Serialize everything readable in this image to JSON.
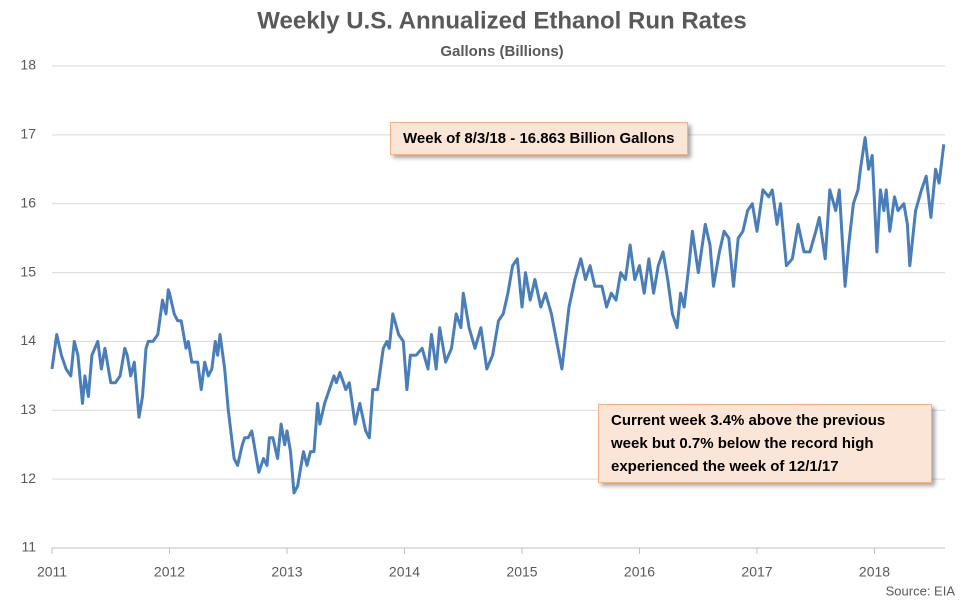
{
  "chart_data": {
    "type": "line",
    "title": "Weekly U.S. Annualized Ethanol Run Rates",
    "subtitle": "Gallons (Billions)",
    "source": "Source: EIA",
    "annotations": [
      "Week of 8/3/18 - 16.863 Billion Gallons",
      "Current week 3.4% above the previous week but 0.7% below the record high experienced the week of 12/1/17"
    ],
    "color": "#4a7ebb",
    "grid": true,
    "xlim": [
      2011,
      2018.6
    ],
    "xticks": [
      2011,
      2012,
      2013,
      2014,
      2015,
      2016,
      2017,
      2018
    ],
    "ylim": [
      11,
      18
    ],
    "yticks": [
      11,
      12,
      13,
      14,
      15,
      16,
      17,
      18
    ],
    "x": [
      2011,
      2011.04,
      2011.08,
      2011.12,
      2011.16,
      2011.19,
      2011.22,
      2011.26,
      2011.28,
      2011.31,
      2011.34,
      2011.39,
      2011.42,
      2011.45,
      2011.5,
      2011.54,
      2011.58,
      2011.62,
      2011.64,
      2011.67,
      2011.7,
      2011.74,
      2011.77,
      2011.8,
      2011.82,
      2011.86,
      2011.9,
      2011.94,
      2011.97,
      2011.99,
      2012.0,
      2012.04,
      2012.07,
      2012.1,
      2012.14,
      2012.16,
      2012.19,
      2012.24,
      2012.27,
      2012.3,
      2012.33,
      2012.36,
      2012.39,
      2012.41,
      2012.43,
      2012.47,
      2012.5,
      2012.55,
      2012.58,
      2012.62,
      2012.64,
      2012.67,
      2012.7,
      2012.76,
      2012.8,
      2012.83,
      2012.85,
      2012.88,
      2012.92,
      2012.95,
      2012.98,
      2013.0,
      2013.03,
      2013.06,
      2013.09,
      2013.12,
      2013.14,
      2013.17,
      2013.2,
      2013.23,
      2013.26,
      2013.28,
      2013.32,
      2013.36,
      2013.4,
      2013.42,
      2013.45,
      2013.5,
      2013.53,
      2013.58,
      2013.62,
      2013.67,
      2013.7,
      2013.73,
      2013.77,
      2013.82,
      2013.85,
      2013.87,
      2013.9,
      2013.95,
      2013.99,
      2014.02,
      2014.05,
      2014.1,
      2014.15,
      2014.2,
      2014.23,
      2014.27,
      2014.3,
      2014.35,
      2014.4,
      2014.44,
      2014.48,
      2014.5,
      2014.55,
      2014.6,
      2014.65,
      2014.7,
      2014.75,
      2014.8,
      2014.84,
      2014.88,
      2014.92,
      2014.96,
      2015.0,
      2015.03,
      2015.07,
      2015.11,
      2015.16,
      2015.2,
      2015.25,
      2015.34,
      2015.4,
      2015.45,
      2015.5,
      2015.54,
      2015.58,
      2015.62,
      2015.68,
      2015.72,
      2015.76,
      2015.8,
      2015.84,
      2015.88,
      2015.92,
      2015.96,
      2016.0,
      2016.04,
      2016.08,
      2016.12,
      2016.16,
      2016.2,
      2016.24,
      2016.28,
      2016.32,
      2016.35,
      2016.38,
      2016.42,
      2016.45,
      2016.5,
      2016.56,
      2016.6,
      2016.63,
      2016.68,
      2016.72,
      2016.76,
      2016.8,
      2016.84,
      2016.88,
      2016.92,
      2016.96,
      2017.0,
      2017.05,
      2017.1,
      2017.13,
      2017.17,
      2017.2,
      2017.25,
      2017.3,
      2017.35,
      2017.4,
      2017.45,
      2017.5,
      2017.53,
      2017.58,
      2017.62,
      2017.67,
      2017.7,
      2017.75,
      2017.78,
      2017.82,
      2017.86,
      2017.88,
      2017.92,
      2017.95,
      2017.98,
      2018.02,
      2018.05,
      2018.08,
      2018.1,
      2018.13,
      2018.17,
      2018.2,
      2018.25,
      2018.28,
      2018.3,
      2018.35,
      2018.4,
      2018.44,
      2018.48,
      2018.52,
      2018.55,
      2018.59
    ],
    "values": [
      13.6,
      14.1,
      13.8,
      13.6,
      13.5,
      14.0,
      13.8,
      13.1,
      13.5,
      13.2,
      13.8,
      14.0,
      13.6,
      13.9,
      13.4,
      13.4,
      13.5,
      13.9,
      13.8,
      13.5,
      13.7,
      12.9,
      13.2,
      13.9,
      14.0,
      14.0,
      14.1,
      14.6,
      14.4,
      14.75,
      14.7,
      14.4,
      14.3,
      14.3,
      13.9,
      14.0,
      13.7,
      13.7,
      13.3,
      13.7,
      13.5,
      13.6,
      14.0,
      13.8,
      14.1,
      13.6,
      13.0,
      12.3,
      12.2,
      12.5,
      12.6,
      12.6,
      12.7,
      12.1,
      12.3,
      12.2,
      12.6,
      12.6,
      12.3,
      12.8,
      12.5,
      12.7,
      12.4,
      11.8,
      11.9,
      12.2,
      12.4,
      12.2,
      12.4,
      12.4,
      13.1,
      12.8,
      13.1,
      13.3,
      13.5,
      13.4,
      13.55,
      13.3,
      13.4,
      12.8,
      13.1,
      12.7,
      12.6,
      13.3,
      13.3,
      13.9,
      14.0,
      13.9,
      14.4,
      14.1,
      14.0,
      13.3,
      13.8,
      13.8,
      13.9,
      13.6,
      14.1,
      13.6,
      14.2,
      13.7,
      13.9,
      14.4,
      14.2,
      14.7,
      14.2,
      13.9,
      14.2,
      13.6,
      13.8,
      14.3,
      14.4,
      14.7,
      15.1,
      15.2,
      14.5,
      15.0,
      14.6,
      14.9,
      14.5,
      14.7,
      14.4,
      13.6,
      14.5,
      14.9,
      15.2,
      14.9,
      15.1,
      14.8,
      14.8,
      14.5,
      14.7,
      14.6,
      15.0,
      14.9,
      15.4,
      14.9,
      15.1,
      14.7,
      15.2,
      14.7,
      15.1,
      15.3,
      14.9,
      14.4,
      14.2,
      14.7,
      14.5,
      15.1,
      15.6,
      15.0,
      15.7,
      15.4,
      14.8,
      15.3,
      15.6,
      15.5,
      14.8,
      15.5,
      15.6,
      15.9,
      16.0,
      15.6,
      16.2,
      16.1,
      16.2,
      15.7,
      16.0,
      15.1,
      15.2,
      15.7,
      15.3,
      15.3,
      15.6,
      15.8,
      15.2,
      16.2,
      15.9,
      16.2,
      14.8,
      15.4,
      16.0,
      16.2,
      16.5,
      16.96,
      16.5,
      16.7,
      15.3,
      16.2,
      15.9,
      16.2,
      15.6,
      16.1,
      15.9,
      16.0,
      15.7,
      15.1,
      15.9,
      16.2,
      16.4,
      15.8,
      16.5,
      16.3,
      16.863
    ]
  }
}
